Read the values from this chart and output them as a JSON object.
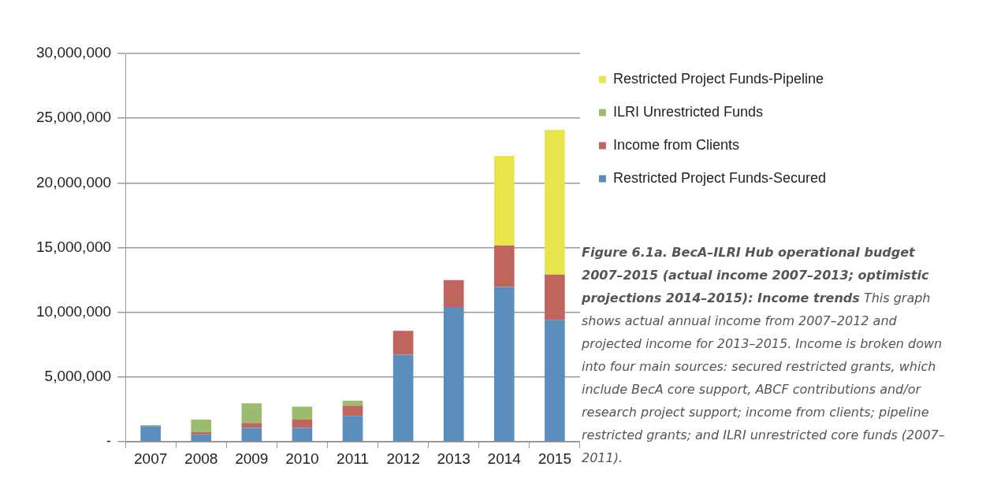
{
  "chart_data": {
    "type": "bar",
    "stacked": true,
    "title": "Figure 6.1a. BecA–ILRI Hub operational budget 2007–2015 (actual income 2007–2013; optimistic projections 2014–2015): Income trends",
    "annotations": [
      "This graph shows actual annual income from 2007–2012 and projected income for 2013–2015. Income is broken down into four main sources: secured restricted grants, which include BecA core support, ABCF contributions and/or research project support; income from clients; pipeline restricted grants; and ILRI unrestricted core funds (2007–2011)."
    ],
    "categories": [
      "2007",
      "2008",
      "2009",
      "2010",
      "2011",
      "2012",
      "2013",
      "2014",
      "2015"
    ],
    "series": [
      {
        "name": "Restricted Project Funds-Secured",
        "color": "#5b8dbd",
        "values": [
          1210000,
          570000,
          1080000,
          1080000,
          2000000,
          6730000,
          10420000,
          11960000,
          9430000
        ]
      },
      {
        "name": "Income from Clients",
        "color": "#c0655d",
        "values": [
          0,
          180000,
          380000,
          640000,
          800000,
          1850000,
          2080000,
          3220000,
          3500000
        ]
      },
      {
        "name": "ILRI Unrestricted Funds",
        "color": "#9bbb6f",
        "values": [
          80000,
          970000,
          1510000,
          1000000,
          370000,
          0,
          0,
          0,
          0
        ]
      },
      {
        "name": "Restricted Project Funds-Pipeline",
        "color": "#e6e64c",
        "values": [
          0,
          0,
          0,
          0,
          0,
          0,
          0,
          6920000,
          11170000
        ]
      }
    ],
    "ylim": [
      0,
      30000000
    ],
    "yticks": [
      {
        "value": 0,
        "label": "-"
      },
      {
        "value": 5000000,
        "label": "5,000,000"
      },
      {
        "value": 10000000,
        "label": "10,000,000"
      },
      {
        "value": 15000000,
        "label": "15,000,000"
      },
      {
        "value": 20000000,
        "label": "20,000,000"
      },
      {
        "value": 25000000,
        "label": "25,000,000"
      },
      {
        "value": 30000000,
        "label": "30,000,000"
      }
    ],
    "grid": "y",
    "legend": "right"
  }
}
